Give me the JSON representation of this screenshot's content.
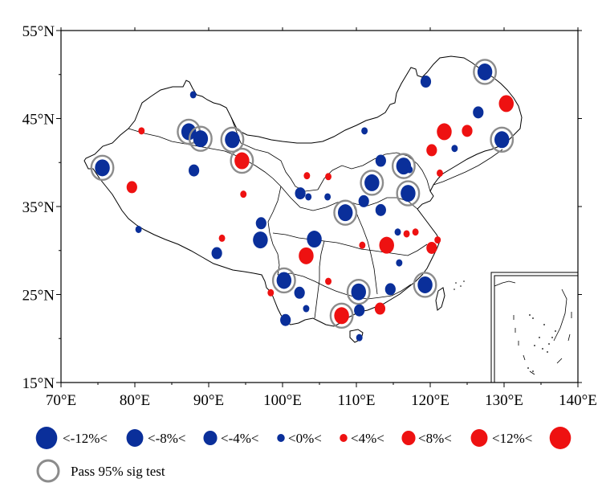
{
  "map": {
    "lon_range": [
      70,
      140
    ],
    "lat_range": [
      15,
      55
    ],
    "x_ticks": [
      {
        "value": 70,
        "label": "70°E"
      },
      {
        "value": 80,
        "label": "80°E"
      },
      {
        "value": 90,
        "label": "90°E"
      },
      {
        "value": 100,
        "label": "100°E"
      },
      {
        "value": 110,
        "label": "110°E"
      },
      {
        "value": 120,
        "label": "120°E"
      },
      {
        "value": 130,
        "label": "130°E"
      },
      {
        "value": 140,
        "label": "140°E"
      }
    ],
    "y_ticks": [
      {
        "value": 55,
        "label": "55°N"
      },
      {
        "value": 45,
        "label": "45°N"
      },
      {
        "value": 35,
        "label": "35°N"
      },
      {
        "value": 25,
        "label": "25°N"
      },
      {
        "value": 15,
        "label": "15°N"
      }
    ],
    "colors": {
      "negative": "#0a2f9a",
      "positive": "#ee1111",
      "sig_ring": "#8c8c8c",
      "border": "#000000"
    },
    "stations": [
      {
        "lon": 75.6,
        "lat": 39.4,
        "cls": -3,
        "sig": true
      },
      {
        "lon": 80.9,
        "lat": 43.6,
        "cls": 1,
        "sig": false
      },
      {
        "lon": 79.6,
        "lat": 37.2,
        "cls": 2,
        "sig": false
      },
      {
        "lon": 80.5,
        "lat": 32.4,
        "cls": -1,
        "sig": false
      },
      {
        "lon": 87.3,
        "lat": 43.5,
        "cls": -3,
        "sig": true
      },
      {
        "lon": 88.9,
        "lat": 42.7,
        "cls": -3,
        "sig": true
      },
      {
        "lon": 87.9,
        "lat": 47.7,
        "cls": -1,
        "sig": false
      },
      {
        "lon": 88.0,
        "lat": 39.1,
        "cls": -2,
        "sig": false
      },
      {
        "lon": 93.2,
        "lat": 42.6,
        "cls": -3,
        "sig": true
      },
      {
        "lon": 94.5,
        "lat": 40.2,
        "cls": 3,
        "sig": true
      },
      {
        "lon": 94.7,
        "lat": 36.4,
        "cls": 1,
        "sig": false
      },
      {
        "lon": 91.1,
        "lat": 29.7,
        "cls": -2,
        "sig": false
      },
      {
        "lon": 91.8,
        "lat": 31.4,
        "cls": 1,
        "sig": false
      },
      {
        "lon": 97.1,
        "lat": 33.1,
        "cls": -2,
        "sig": false
      },
      {
        "lon": 97.0,
        "lat": 31.2,
        "cls": -3,
        "sig": false
      },
      {
        "lon": 102.4,
        "lat": 36.5,
        "cls": -2,
        "sig": false
      },
      {
        "lon": 103.3,
        "lat": 38.5,
        "cls": 1,
        "sig": false
      },
      {
        "lon": 103.5,
        "lat": 36.1,
        "cls": -1,
        "sig": false
      },
      {
        "lon": 106.2,
        "lat": 38.4,
        "cls": 1,
        "sig": false
      },
      {
        "lon": 106.1,
        "lat": 36.1,
        "cls": -1,
        "sig": false
      },
      {
        "lon": 104.3,
        "lat": 31.3,
        "cls": -3,
        "sig": false
      },
      {
        "lon": 103.2,
        "lat": 29.4,
        "cls": 3,
        "sig": false
      },
      {
        "lon": 108.5,
        "lat": 34.3,
        "cls": -3,
        "sig": true
      },
      {
        "lon": 111.1,
        "lat": 43.6,
        "cls": -1,
        "sig": false
      },
      {
        "lon": 112.1,
        "lat": 37.7,
        "cls": -3,
        "sig": true
      },
      {
        "lon": 113.3,
        "lat": 40.2,
        "cls": -2,
        "sig": false
      },
      {
        "lon": 111.0,
        "lat": 35.6,
        "cls": -2,
        "sig": false
      },
      {
        "lon": 113.3,
        "lat": 34.6,
        "cls": -2,
        "sig": false
      },
      {
        "lon": 116.4,
        "lat": 39.6,
        "cls": -3,
        "sig": true
      },
      {
        "lon": 117.0,
        "lat": 36.5,
        "cls": -3,
        "sig": true
      },
      {
        "lon": 117.2,
        "lat": 39.2,
        "cls": -1,
        "sig": false
      },
      {
        "lon": 121.3,
        "lat": 38.8,
        "cls": 1,
        "sig": false
      },
      {
        "lon": 120.2,
        "lat": 41.4,
        "cls": 2,
        "sig": false
      },
      {
        "lon": 121.9,
        "lat": 43.5,
        "cls": 3,
        "sig": false
      },
      {
        "lon": 123.3,
        "lat": 41.6,
        "cls": -1,
        "sig": false
      },
      {
        "lon": 125.0,
        "lat": 43.6,
        "cls": 2,
        "sig": false
      },
      {
        "lon": 126.5,
        "lat": 45.7,
        "cls": -2,
        "sig": false
      },
      {
        "lon": 127.4,
        "lat": 50.3,
        "cls": -3,
        "sig": true
      },
      {
        "lon": 129.7,
        "lat": 42.6,
        "cls": -3,
        "sig": true
      },
      {
        "lon": 130.3,
        "lat": 46.7,
        "cls": 3,
        "sig": false
      },
      {
        "lon": 119.4,
        "lat": 49.2,
        "cls": -2,
        "sig": false
      },
      {
        "lon": 110.8,
        "lat": 30.6,
        "cls": 1,
        "sig": false
      },
      {
        "lon": 114.1,
        "lat": 30.6,
        "cls": 3,
        "sig": false
      },
      {
        "lon": 115.6,
        "lat": 32.1,
        "cls": -1,
        "sig": false
      },
      {
        "lon": 116.8,
        "lat": 31.9,
        "cls": 1,
        "sig": false
      },
      {
        "lon": 118.0,
        "lat": 32.1,
        "cls": 1,
        "sig": false
      },
      {
        "lon": 121.0,
        "lat": 31.2,
        "cls": 1,
        "sig": false
      },
      {
        "lon": 120.2,
        "lat": 30.3,
        "cls": 2,
        "sig": false
      },
      {
        "lon": 115.8,
        "lat": 28.6,
        "cls": -1,
        "sig": false
      },
      {
        "lon": 100.2,
        "lat": 26.6,
        "cls": -3,
        "sig": true
      },
      {
        "lon": 102.3,
        "lat": 25.2,
        "cls": -2,
        "sig": false
      },
      {
        "lon": 106.2,
        "lat": 26.5,
        "cls": 1,
        "sig": false
      },
      {
        "lon": 98.4,
        "lat": 25.2,
        "cls": 1,
        "sig": false
      },
      {
        "lon": 100.4,
        "lat": 22.1,
        "cls": -2,
        "sig": false
      },
      {
        "lon": 103.2,
        "lat": 23.4,
        "cls": -1,
        "sig": false
      },
      {
        "lon": 110.3,
        "lat": 25.3,
        "cls": -3,
        "sig": true
      },
      {
        "lon": 114.6,
        "lat": 25.6,
        "cls": -2,
        "sig": false
      },
      {
        "lon": 119.3,
        "lat": 26.1,
        "cls": -3,
        "sig": true
      },
      {
        "lon": 108.0,
        "lat": 22.6,
        "cls": 3,
        "sig": true
      },
      {
        "lon": 110.4,
        "lat": 23.2,
        "cls": -2,
        "sig": false
      },
      {
        "lon": 113.2,
        "lat": 23.4,
        "cls": 2,
        "sig": false
      },
      {
        "lon": 110.4,
        "lat": 20.1,
        "cls": -1,
        "sig": false
      }
    ]
  },
  "legend": {
    "symbols": [
      {
        "cls": -4
      },
      {
        "cls": -3
      },
      {
        "cls": -2
      },
      {
        "cls": -1
      },
      {
        "cls": 1
      },
      {
        "cls": 2
      },
      {
        "cls": 3
      },
      {
        "cls": 4
      }
    ],
    "labels": [
      "<-12%<",
      "<-8%<",
      "<-4%<",
      "<0%<",
      "<4%<",
      "<8%<",
      "<12%<"
    ],
    "sig_label": "Pass 95% sig test"
  }
}
